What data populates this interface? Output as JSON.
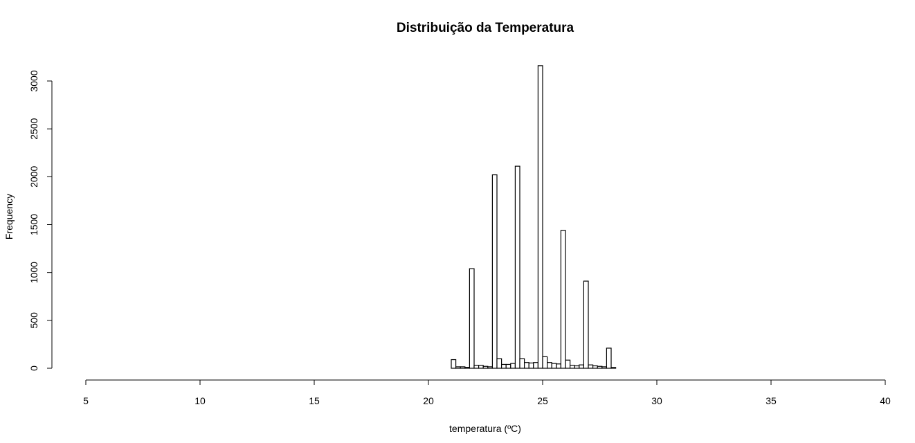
{
  "chart_data": {
    "type": "bar",
    "title": "Distribuição da Temperatura",
    "xlabel": "temperatura (ºC)",
    "ylabel": "Frequency",
    "xlim": [
      5,
      40
    ],
    "ylim": [
      0,
      3150
    ],
    "x_ticks": [
      "5",
      "10",
      "15",
      "20",
      "25",
      "30",
      "35",
      "40"
    ],
    "y_ticks": [
      "0",
      "500",
      "1000",
      "1500",
      "2000",
      "2500",
      "3000"
    ],
    "bin_width": 0.2,
    "bins": [
      {
        "x0": 21.0,
        "x1": 21.2,
        "count": 90
      },
      {
        "x0": 21.2,
        "x1": 21.4,
        "count": 15
      },
      {
        "x0": 21.4,
        "x1": 21.6,
        "count": 15
      },
      {
        "x0": 21.6,
        "x1": 21.8,
        "count": 10
      },
      {
        "x0": 21.8,
        "x1": 22.0,
        "count": 1040
      },
      {
        "x0": 22.0,
        "x1": 22.2,
        "count": 30
      },
      {
        "x0": 22.2,
        "x1": 22.4,
        "count": 30
      },
      {
        "x0": 22.4,
        "x1": 22.6,
        "count": 20
      },
      {
        "x0": 22.6,
        "x1": 22.8,
        "count": 15
      },
      {
        "x0": 22.8,
        "x1": 23.0,
        "count": 2020
      },
      {
        "x0": 23.0,
        "x1": 23.2,
        "count": 100
      },
      {
        "x0": 23.2,
        "x1": 23.4,
        "count": 40
      },
      {
        "x0": 23.4,
        "x1": 23.6,
        "count": 40
      },
      {
        "x0": 23.6,
        "x1": 23.8,
        "count": 50
      },
      {
        "x0": 23.8,
        "x1": 24.0,
        "count": 2110
      },
      {
        "x0": 24.0,
        "x1": 24.2,
        "count": 100
      },
      {
        "x0": 24.2,
        "x1": 24.4,
        "count": 60
      },
      {
        "x0": 24.4,
        "x1": 24.6,
        "count": 55
      },
      {
        "x0": 24.6,
        "x1": 24.8,
        "count": 60
      },
      {
        "x0": 24.8,
        "x1": 25.0,
        "count": 3160
      },
      {
        "x0": 25.0,
        "x1": 25.2,
        "count": 120
      },
      {
        "x0": 25.2,
        "x1": 25.4,
        "count": 60
      },
      {
        "x0": 25.4,
        "x1": 25.6,
        "count": 50
      },
      {
        "x0": 25.6,
        "x1": 25.8,
        "count": 45
      },
      {
        "x0": 25.8,
        "x1": 26.0,
        "count": 1440
      },
      {
        "x0": 26.0,
        "x1": 26.2,
        "count": 85
      },
      {
        "x0": 26.2,
        "x1": 26.4,
        "count": 30
      },
      {
        "x0": 26.4,
        "x1": 26.6,
        "count": 25
      },
      {
        "x0": 26.6,
        "x1": 26.8,
        "count": 35
      },
      {
        "x0": 26.8,
        "x1": 27.0,
        "count": 910
      },
      {
        "x0": 27.0,
        "x1": 27.2,
        "count": 35
      },
      {
        "x0": 27.2,
        "x1": 27.4,
        "count": 25
      },
      {
        "x0": 27.4,
        "x1": 27.6,
        "count": 20
      },
      {
        "x0": 27.6,
        "x1": 27.8,
        "count": 15
      },
      {
        "x0": 27.8,
        "x1": 28.0,
        "count": 210
      },
      {
        "x0": 28.0,
        "x1": 28.2,
        "count": 8
      }
    ],
    "grid": false,
    "legend": "none"
  }
}
